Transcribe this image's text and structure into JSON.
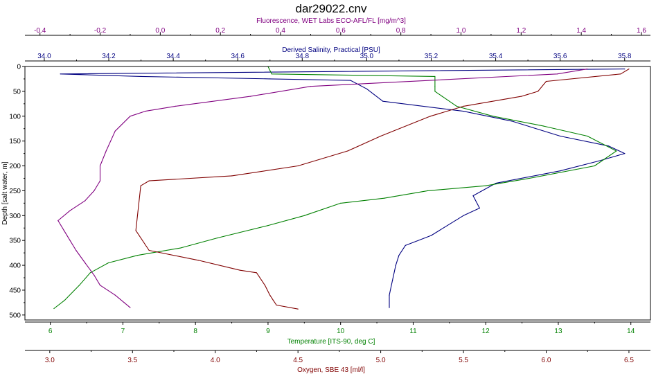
{
  "chart_data": {
    "type": "line",
    "title": "dar29022.cnv",
    "y_axis": {
      "label": "Depth [salt water, m]",
      "range": [
        0,
        510
      ],
      "inverted": true,
      "ticks": [
        0,
        50,
        100,
        150,
        200,
        250,
        300,
        350,
        400,
        450,
        500
      ],
      "tick_labels": [
        "0",
        "50",
        "100",
        "150",
        "200",
        "250",
        "300",
        "350",
        "400",
        "450",
        "500"
      ]
    },
    "x_axes": [
      {
        "id": "fluorescence",
        "position": "top-outer",
        "label": "Fluorescence, WET Labs ECO-AFL/FL [mg/m^3]",
        "color": "#800080",
        "range": [
          -0.45,
          1.63
        ],
        "ticks": [
          -0.4,
          -0.2,
          0.0,
          0.2,
          0.4,
          0.6,
          0.8,
          1.0,
          1.2,
          1.4,
          1.6
        ],
        "tick_labels": [
          "-0.4",
          "-0.2",
          "0.0",
          "0.2",
          "0.4",
          "0.6",
          "0.8",
          "1.0",
          "1.2",
          "1.4",
          "1.6"
        ]
      },
      {
        "id": "salinity",
        "position": "top-inner",
        "label": "Derived Salinity, Practical [PSU]",
        "color": "#000080",
        "range": [
          33.94,
          35.88
        ],
        "ticks": [
          34.0,
          34.2,
          34.4,
          34.6,
          34.8,
          35.0,
          35.2,
          35.4,
          35.6,
          35.8
        ],
        "tick_labels": [
          "34.0",
          "34.2",
          "34.4",
          "34.6",
          "34.8",
          "35.0",
          "35.2",
          "35.4",
          "35.6",
          "35.8"
        ]
      },
      {
        "id": "temperature",
        "position": "bottom-inner",
        "label": "Temperature [ITS-90, deg C]",
        "color": "#008000",
        "range": [
          5.65,
          14.27
        ],
        "ticks": [
          6,
          7,
          8,
          9,
          10,
          11,
          12,
          13,
          14
        ],
        "tick_labels": [
          "6",
          "7",
          "8",
          "9",
          "10",
          "11",
          "12",
          "13",
          "14"
        ]
      },
      {
        "id": "oxygen",
        "position": "bottom-outer",
        "label": "Oxygen, SBE 43 [ml/l]",
        "color": "#800000",
        "range": [
          2.85,
          6.63
        ],
        "ticks": [
          3.0,
          3.5,
          4.0,
          4.5,
          5.0,
          5.5,
          6.0,
          6.5
        ],
        "tick_labels": [
          "3.0",
          "3.5",
          "4.0",
          "4.5",
          "5.0",
          "5.5",
          "6.0",
          "6.5"
        ]
      }
    ],
    "series": [
      {
        "axis": "salinity",
        "color": "#000080",
        "x": [
          35.8,
          34.05,
          34.3,
          34.7,
          34.95,
          35.0,
          35.05,
          35.3,
          35.45,
          35.6,
          35.75,
          35.8,
          35.72,
          35.6,
          35.4,
          35.33,
          35.35,
          35.3,
          35.2,
          35.12,
          35.1,
          35.09,
          35.08,
          35.07,
          35.07
        ],
        "y": [
          5,
          15,
          20,
          25,
          28,
          45,
          70,
          90,
          110,
          140,
          160,
          175,
          190,
          210,
          235,
          260,
          285,
          300,
          340,
          360,
          380,
          400,
          430,
          460,
          485
        ]
      },
      {
        "axis": "temperature",
        "color": "#008000",
        "x": [
          9.0,
          9.05,
          11.3,
          11.3,
          11.3,
          11.4,
          11.6,
          12.1,
          12.8,
          13.4,
          13.8,
          13.5,
          12.6,
          12.0,
          11.2,
          10.6,
          10.0,
          9.5,
          9.0,
          8.3,
          7.8,
          7.2,
          6.8,
          6.55,
          6.4,
          6.2,
          6.05
        ],
        "y": [
          0,
          15,
          20,
          40,
          50,
          60,
          80,
          100,
          120,
          140,
          170,
          200,
          225,
          240,
          250,
          265,
          275,
          300,
          320,
          345,
          365,
          380,
          395,
          415,
          440,
          470,
          487
        ]
      },
      {
        "axis": "oxygen",
        "color": "#800000",
        "x": [
          6.5,
          6.45,
          6.0,
          5.95,
          5.85,
          5.5,
          5.3,
          5.0,
          4.8,
          4.5,
          4.1,
          3.6,
          3.55,
          3.52,
          3.6,
          3.9,
          4.15,
          4.25,
          4.3,
          4.33,
          4.35,
          4.37,
          4.5
        ],
        "y": [
          5,
          15,
          30,
          50,
          60,
          80,
          100,
          140,
          170,
          200,
          220,
          230,
          240,
          330,
          370,
          390,
          410,
          415,
          440,
          460,
          470,
          480,
          488
        ]
      },
      {
        "axis": "fluorescence",
        "color": "#800080",
        "x": [
          1.42,
          1.32,
          0.5,
          0.3,
          0.05,
          -0.05,
          -0.1,
          -0.15,
          -0.18,
          -0.2,
          -0.2,
          -0.22,
          -0.25,
          -0.3,
          -0.34,
          -0.32,
          -0.3,
          -0.28,
          -0.25,
          -0.22,
          -0.2,
          -0.15,
          -0.12,
          -0.1
        ],
        "y": [
          5,
          15,
          40,
          60,
          80,
          90,
          100,
          130,
          170,
          200,
          230,
          250,
          270,
          290,
          310,
          330,
          350,
          370,
          395,
          420,
          440,
          460,
          475,
          485
        ]
      }
    ]
  }
}
